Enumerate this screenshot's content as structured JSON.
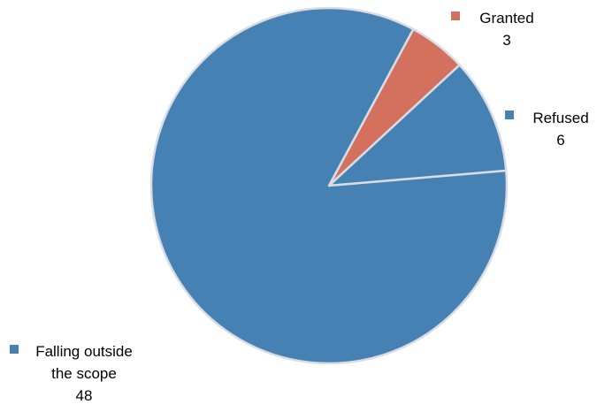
{
  "chart_data": {
    "type": "pie",
    "title": "",
    "start_slice": "Granted",
    "direction": "clockwise",
    "slices": [
      {
        "name": "Granted",
        "value": 3,
        "color": "#d3705e",
        "label_lines": [
          "Granted",
          "3"
        ]
      },
      {
        "name": "Refused",
        "value": 6,
        "color": "#4681b4",
        "label_lines": [
          "Refused",
          "6"
        ]
      },
      {
        "name": "Falling outside the scope",
        "value": 48,
        "color": "#4681b4",
        "label_lines": [
          "Falling outside",
          "the scope",
          "48"
        ]
      }
    ],
    "slice_border_color": "#d9dde3",
    "legend": "data labels with color keys next to each slice"
  }
}
